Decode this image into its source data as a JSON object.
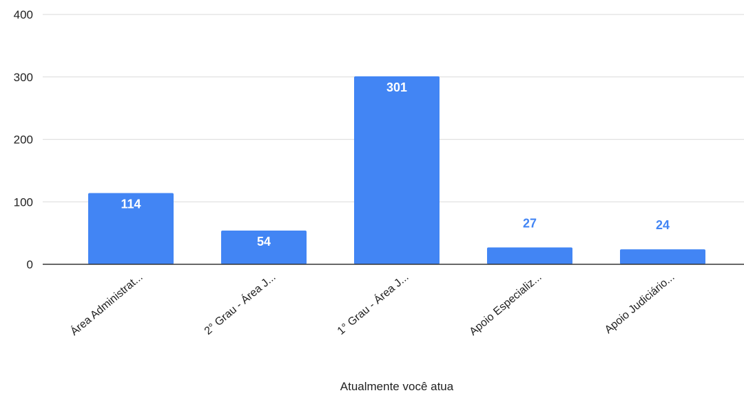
{
  "chart_data": {
    "type": "bar",
    "categories": [
      "Área Administrat...",
      "2° Grau - Área J...",
      "1° Grau - Área J...",
      "Apoio Especializ...",
      "Apoio Judiciário..."
    ],
    "values": [
      114,
      54,
      301,
      27,
      24
    ],
    "xlabel": "Atualmente você atua",
    "ylabel": "",
    "ylim": [
      0,
      400
    ],
    "yticks": [
      "0",
      "100",
      "200",
      "300",
      "400"
    ],
    "data_labels": [
      "114",
      "54",
      "301",
      "27",
      "24"
    ],
    "grid": true,
    "colors": {
      "bar": "#4285f4",
      "label_inside": "#ffffff",
      "label_outside": "#4285f4",
      "grid": "#e0e0e0",
      "axis": "#333333"
    }
  }
}
